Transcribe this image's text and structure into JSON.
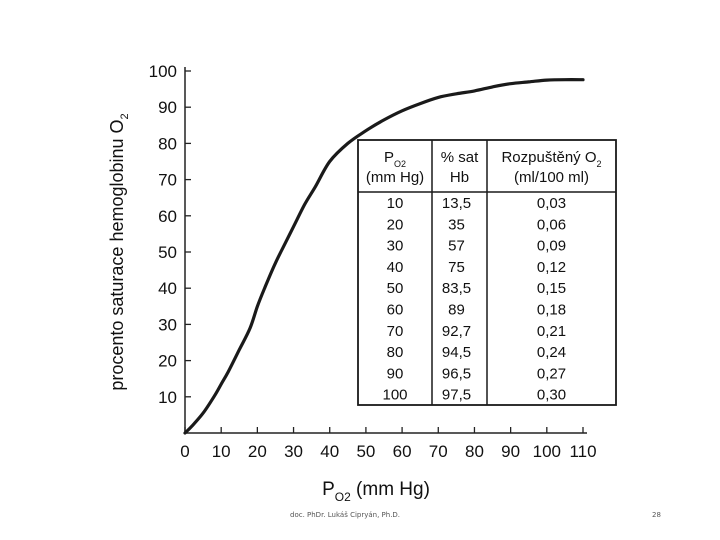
{
  "chart_data": {
    "type": "line",
    "title": "",
    "xlabel": {
      "main": "P",
      "sub": "O2",
      "rest": " (mm Hg)"
    },
    "ylabel": {
      "main": "procento saturace hemoglobinu O",
      "sub": "2"
    },
    "xlim": [
      0,
      110
    ],
    "ylim": [
      0,
      100
    ],
    "x_ticks": [
      0,
      10,
      20,
      30,
      40,
      50,
      60,
      70,
      80,
      90,
      100,
      110
    ],
    "y_ticks": [
      10,
      20,
      30,
      40,
      50,
      60,
      70,
      80,
      90,
      100
    ],
    "grid": false,
    "series": [
      {
        "name": "% sat Hb",
        "x": [
          0,
          2,
          5,
          8,
          10,
          12,
          15,
          18,
          20,
          22,
          25,
          28,
          30,
          33,
          36,
          40,
          45,
          50,
          55,
          60,
          65,
          70,
          75,
          80,
          85,
          90,
          95,
          100,
          105,
          110
        ],
        "y": [
          0,
          2,
          5.5,
          10,
          13.5,
          17,
          23,
          29,
          35,
          40,
          47,
          53,
          57,
          63,
          68,
          75,
          80,
          83.5,
          86.5,
          89,
          91,
          92.7,
          93.7,
          94.5,
          95.6,
          96.5,
          97,
          97.5,
          97.6,
          97.6
        ]
      }
    ],
    "table": {
      "headers": [
        {
          "main": "P",
          "sub": "O2",
          "line2": "(mm Hg)"
        },
        {
          "main": "% sat",
          "line2": "Hb"
        },
        {
          "main": "Rozpuštěný O",
          "sub": "2",
          "line2": "(ml/100 ml)"
        }
      ],
      "rows": [
        [
          "10",
          "13,5",
          "0,03"
        ],
        [
          "20",
          "35",
          "0,06"
        ],
        [
          "30",
          "57",
          "0,09"
        ],
        [
          "40",
          "75",
          "0,12"
        ],
        [
          "50",
          "83,5",
          "0,15"
        ],
        [
          "60",
          "89",
          "0,18"
        ],
        [
          "70",
          "92,7",
          "0,21"
        ],
        [
          "80",
          "94,5",
          "0,24"
        ],
        [
          "90",
          "96,5",
          "0,27"
        ],
        [
          "100",
          "97,5",
          "0,30"
        ]
      ]
    }
  },
  "footer": {
    "author": "doc. PhDr. Lukáš Cipryán, Ph.D.",
    "page": "28"
  }
}
